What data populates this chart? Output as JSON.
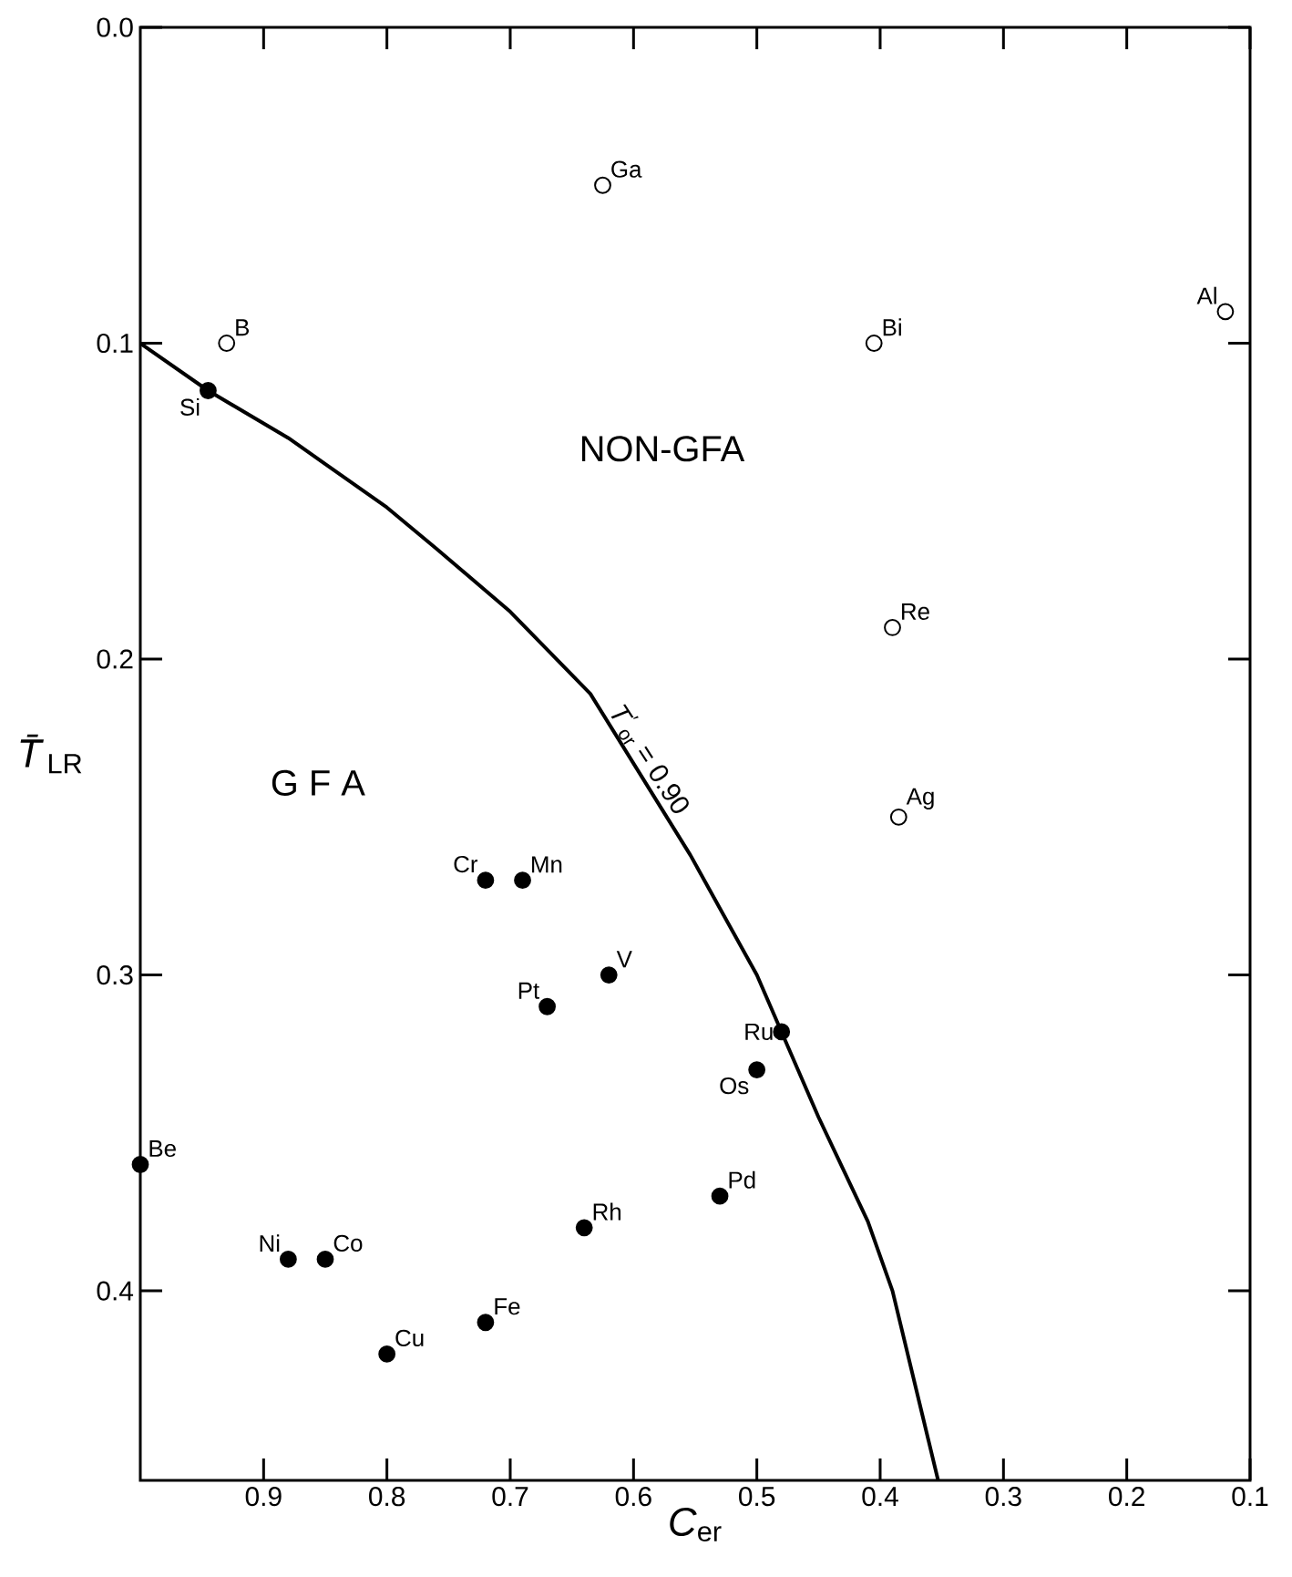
{
  "chart_data": {
    "type": "scatter",
    "xlabel": "*C*$_{er}$",
    "ylabel": "*T̄*$_{LR}$",
    "xlim": [
      1.0,
      0.1
    ],
    "ylim": [
      0.46,
      0.0
    ],
    "xticks": [
      0.9,
      0.8,
      0.7,
      0.6,
      0.5,
      0.4,
      0.3,
      0.2,
      0.1
    ],
    "yticks": [
      {
        "value": 0.0,
        "label": "0.0"
      },
      0.1,
      0.2,
      0.3,
      0.4
    ],
    "grid": false,
    "series": [
      {
        "color": "#000000",
        "x": [
          0.945,
          0.72,
          0.69,
          0.62,
          0.67,
          0.48,
          0.5,
          1.0,
          0.53,
          0.64,
          0.88,
          0.85,
          0.72,
          0.8
        ],
        "values": [
          0.115,
          0.27,
          0.27,
          0.3,
          0.31,
          0.318,
          0.33,
          0.36,
          0.37,
          0.38,
          0.39,
          0.39,
          0.41,
          0.42
        ]
      },
      {
        "color": "#ffffff",
        "x": [
          0.625,
          0.93,
          0.405,
          0.12,
          0.39,
          0.385
        ],
        "values": [
          0.05,
          0.1,
          0.1,
          0.09,
          0.19,
          0.25
        ]
      },
      {
        "type": "line",
        "marker": "none",
        "line_style": "solid",
        "color": "#000000",
        "x": [
          1.0,
          0.945,
          0.88,
          0.8,
          0.76,
          0.7,
          0.635,
          0.554,
          0.5,
          0.48,
          0.45,
          0.41,
          0.39,
          0.353
        ],
        "values": [
          0.1,
          0.115,
          0.13,
          0.152,
          0.165,
          0.185,
          0.211,
          0.262,
          0.3,
          0.318,
          0.345,
          0.378,
          0.4,
          0.46
        ]
      }
    ],
    "annotations": [
      {
        "text": "Ga",
        "x": 0.625,
        "y": 0.05
      },
      {
        "text": "B",
        "x": 0.93,
        "y": 0.1
      },
      {
        "text": "Bi",
        "x": 0.405,
        "y": 0.1
      },
      {
        "text": "Al",
        "x": 0.12,
        "y": 0.09
      },
      {
        "text": "Re",
        "x": 0.39,
        "y": 0.19
      },
      {
        "text": "Ag",
        "x": 0.385,
        "y": 0.25
      },
      {
        "text": "Si",
        "x": 0.945,
        "y": 0.115
      },
      {
        "text": "Cr",
        "x": 0.72,
        "y": 0.27
      },
      {
        "text": "Mn",
        "x": 0.69,
        "y": 0.27
      },
      {
        "text": "V",
        "x": 0.62,
        "y": 0.3
      },
      {
        "text": "Pt",
        "x": 0.67,
        "y": 0.31
      },
      {
        "text": "Ru",
        "x": 0.48,
        "y": 0.318
      },
      {
        "text": "Os",
        "x": 0.5,
        "y": 0.33
      },
      {
        "text": "Be",
        "x": 1.0,
        "y": 0.36
      },
      {
        "text": "Pd",
        "x": 0.53,
        "y": 0.37
      },
      {
        "text": "Rh",
        "x": 0.64,
        "y": 0.38
      },
      {
        "text": "Ni",
        "x": 0.88,
        "y": 0.39
      },
      {
        "text": "Co",
        "x": 0.85,
        "y": 0.39
      },
      {
        "text": "Fe",
        "x": 0.72,
        "y": 0.41
      },
      {
        "text": "Cu",
        "x": 0.8,
        "y": 0.42
      },
      {
        "text": "*T*$^{′}$$_{or}$ = 0.90",
        "x": 0.6,
        "y": 0.235
      },
      "G F A",
      "NON-GFA"
    ]
  }
}
